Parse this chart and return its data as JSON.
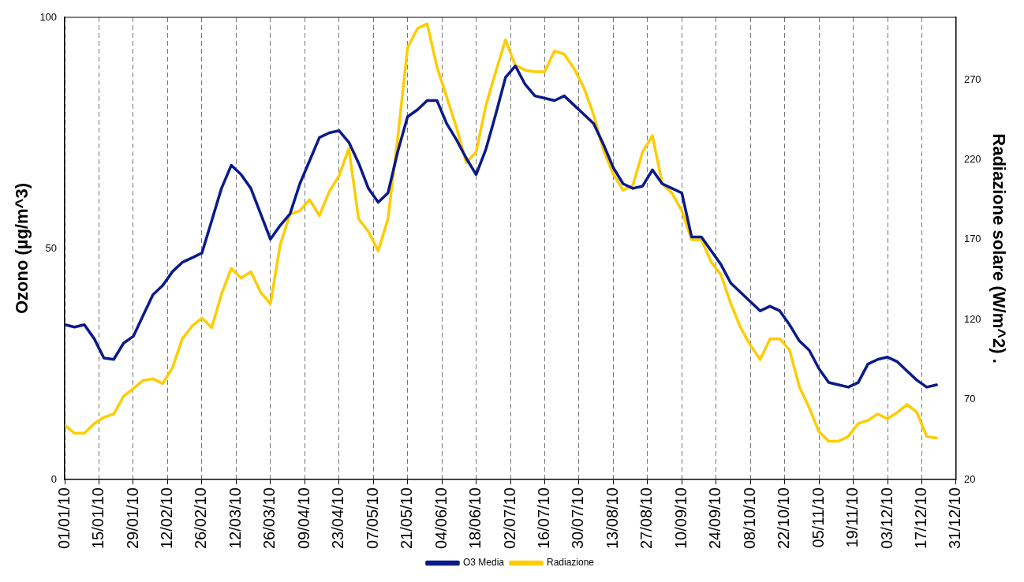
{
  "chart_data": {
    "type": "line",
    "ylabel": "Ozono (µg/m^3)",
    "y2label": "Radiazione solare (W/m^2) .",
    "x": [
      "--01-01",
      "--01-05",
      "--01-09",
      "--01-13",
      "--01-17",
      "--01-21",
      "--01-25",
      "--01-29",
      "--02-02",
      "--02-06",
      "--02-10",
      "--02-14",
      "--02-18",
      "--02-22",
      "--02-26",
      "--03-02",
      "--03-06",
      "--03-10",
      "--03-14",
      "--03-18",
      "--03-22",
      "--03-26",
      "--03-30",
      "--04-03",
      "--04-07",
      "--04-11",
      "--04-15",
      "--04-19",
      "--04-23",
      "--04-27",
      "--05-01",
      "--05-05",
      "--05-09",
      "--05-13",
      "--05-17",
      "--05-21",
      "--05-25",
      "--05-29",
      "--06-02",
      "--06-06",
      "--06-10",
      "--06-14",
      "--06-18",
      "--06-22",
      "--06-26",
      "--06-30",
      "--07-04",
      "--07-08",
      "--07-12",
      "--07-16",
      "--07-20",
      "--07-24",
      "--07-28",
      "--08-01",
      "--08-05",
      "--08-09",
      "--08-13",
      "--08-17",
      "--08-21",
      "--08-25",
      "--08-29",
      "--09-02",
      "--09-06",
      "--09-10",
      "--09-14",
      "--09-18",
      "--09-22",
      "--09-26",
      "--09-30",
      "--10-04",
      "--10-08",
      "--10-12",
      "--10-16",
      "--10-20",
      "--10-24",
      "--10-28",
      "--11-01",
      "--11-05",
      "--11-09",
      "--11-13",
      "--11-17",
      "--11-21",
      "--11-25",
      "--11-29",
      "--12-03",
      "--12-07",
      "--12-11",
      "--12-15",
      "--12-19",
      "--12-23"
    ],
    "series": [
      {
        "name": "O3 Media",
        "color": "#0a1a8a",
        "values": [
          33.5,
          33,
          33.5,
          30.5,
          26.3,
          26,
          29.5,
          31,
          35.5,
          40,
          42,
          45,
          47,
          48,
          49,
          56,
          63,
          68,
          66,
          63,
          57.5,
          52,
          55,
          57.5,
          64,
          69,
          74,
          75,
          75.5,
          73,
          68.5,
          63,
          60,
          62,
          71,
          78.5,
          80,
          82,
          82,
          77,
          73.5,
          69.5,
          66,
          71.5,
          79,
          87,
          89.5,
          85.5,
          83,
          82.5,
          82,
          83,
          81,
          79,
          77,
          72.5,
          67.5,
          64,
          63,
          63.5,
          67,
          64,
          63,
          62,
          52.5,
          52.5,
          49.5,
          46.5,
          42.5,
          40.5,
          38.5,
          36.5,
          37.5,
          36.5,
          33.5,
          30,
          28,
          24,
          21,
          20.5,
          20,
          21,
          25,
          26,
          26.5,
          25.5,
          23.5,
          21.5,
          20,
          20.5
        ]
      },
      {
        "name": "Radiazione",
        "color": "#ffcc00",
        "axis": "y2",
        "values": [
          54,
          49,
          49,
          55,
          59,
          61,
          72,
          77,
          82,
          83,
          80,
          90,
          108,
          116,
          121,
          115,
          136,
          152,
          146,
          150,
          137,
          130,
          167,
          186,
          188,
          195,
          185,
          200,
          210,
          227,
          183,
          175,
          163,
          183,
          234,
          290,
          302,
          305,
          278,
          259,
          240,
          218,
          225,
          254,
          275,
          295,
          279,
          276,
          275,
          275,
          288,
          286,
          277,
          265,
          248,
          226,
          211,
          201,
          204,
          225,
          235,
          205,
          199,
          188,
          170,
          170,
          156,
          148,
          130,
          115,
          104,
          95,
          108,
          108,
          101,
          78,
          65,
          50,
          44,
          44,
          47,
          55,
          57,
          61,
          58,
          62,
          67,
          62,
          47,
          46
        ]
      }
    ],
    "xlim": [
      "--01-01",
      "--12-31"
    ],
    "xticks": [
      {
        "value": "--01-01",
        "label": "01/01/10"
      },
      {
        "value": "--01-15",
        "label": "15/01/10"
      },
      {
        "value": "--01-29",
        "label": "29/01/10"
      },
      {
        "value": "--02-12",
        "label": "12/02/10"
      },
      {
        "value": "--02-26",
        "label": "26/02/10"
      },
      {
        "value": "--03-12",
        "label": "12/03/10"
      },
      {
        "value": "--03-26",
        "label": "26/03/10"
      },
      {
        "value": "--04-09",
        "label": "09/04/10"
      },
      {
        "value": "--04-23",
        "label": "23/04/10"
      },
      {
        "value": "--05-07",
        "label": "07/05/10"
      },
      {
        "value": "--05-21",
        "label": "21/05/10"
      },
      {
        "value": "--06-04",
        "label": "04/06/10"
      },
      {
        "value": "--06-18",
        "label": "18/06/10"
      },
      {
        "value": "--07-02",
        "label": "02/07/10"
      },
      {
        "value": "--07-16",
        "label": "16/07/10"
      },
      {
        "value": "--07-30",
        "label": "30/07/10"
      },
      {
        "value": "--08-13",
        "label": "13/08/10"
      },
      {
        "value": "--08-27",
        "label": "27/08/10"
      },
      {
        "value": "--09-10",
        "label": "10/09/10"
      },
      {
        "value": "--09-24",
        "label": "24/09/10"
      },
      {
        "value": "--10-08",
        "label": "08/10/10"
      },
      {
        "value": "--10-22",
        "label": "22/10/10"
      },
      {
        "value": "--11-05",
        "label": "05/11/10"
      },
      {
        "value": "--11-19",
        "label": "19/11/10"
      },
      {
        "value": "--12-03",
        "label": "03/12/10"
      },
      {
        "value": "--12-17",
        "label": "17/12/10"
      },
      {
        "value": "--12-31",
        "label": "31/12/10"
      }
    ],
    "ylim": [
      0,
      100
    ],
    "yticks": [
      0,
      50,
      100
    ],
    "y2lim": [
      20,
      309
    ],
    "y2ticks": [
      20,
      70,
      120,
      170,
      220,
      270
    ],
    "grid": "x",
    "legend": "bottom",
    "marker": "none",
    "line_style": "solid"
  }
}
